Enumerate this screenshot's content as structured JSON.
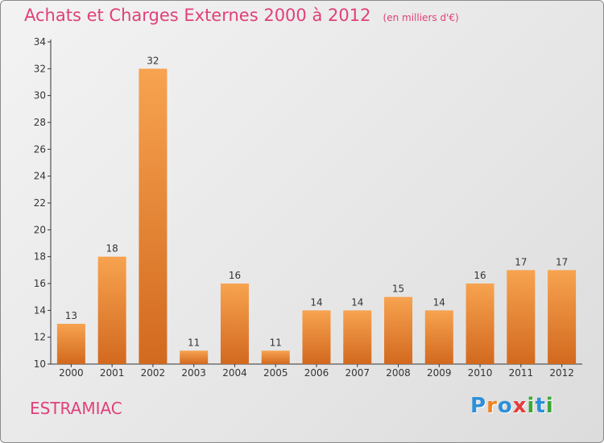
{
  "title": "Achats et Charges Externes 2000 à 2012",
  "unit_note": "(en milliers d'€)",
  "commune": "ESTRAMIAC",
  "logo": {
    "letters": [
      "P",
      "r",
      "o",
      "x",
      "i",
      "t",
      "i"
    ],
    "colors": [
      "#2d8fd8",
      "#f0831e",
      "#2d8fd8",
      "#e73a3a",
      "#39a935",
      "#2d8fd8",
      "#39a935"
    ]
  },
  "colors": {
    "title": "#e0407a",
    "bar_top": "#f7a350",
    "bar_bottom": "#d2691e"
  },
  "chart_data": {
    "type": "bar",
    "title": "Achats et Charges Externes 2000 à 2012",
    "xlabel": "",
    "ylabel": "",
    "categories": [
      "2000",
      "2001",
      "2002",
      "2003",
      "2004",
      "2005",
      "2006",
      "2007",
      "2008",
      "2009",
      "2010",
      "2011",
      "2012"
    ],
    "values": [
      13,
      18,
      32,
      11,
      16,
      11,
      14,
      14,
      15,
      14,
      16,
      17,
      17
    ],
    "ylim": [
      10,
      34
    ],
    "yticks": [
      10,
      12,
      14,
      16,
      18,
      20,
      22,
      24,
      26,
      28,
      30,
      32,
      34
    ],
    "grid": false,
    "legend": "none"
  }
}
